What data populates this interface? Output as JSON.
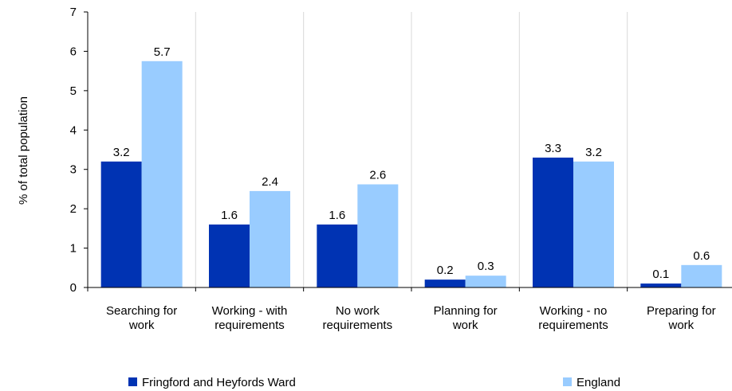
{
  "chart_data": {
    "type": "bar",
    "ylabel": "% of total population",
    "ylim": [
      0,
      7
    ],
    "yticks": [
      0,
      1,
      2,
      3,
      4,
      5,
      6,
      7
    ],
    "grid": "vertical-category-separators",
    "legend_position": "bottom",
    "categories": [
      [
        "Searching for",
        "work"
      ],
      [
        "Working - with",
        "requirements"
      ],
      [
        "No work",
        "requirements"
      ],
      [
        "Planning for",
        "work"
      ],
      [
        "Working - no",
        "requirements"
      ],
      [
        "Preparing for",
        "work"
      ]
    ],
    "series": [
      {
        "name": "Fringford and Heyfords Ward",
        "color": "#0033b3",
        "values": [
          3.2,
          1.6,
          1.6,
          0.2,
          3.3,
          0.1
        ],
        "labels": [
          "3.2",
          "1.6",
          "1.6",
          "0.2",
          "3.3",
          "0.1"
        ]
      },
      {
        "name": "England",
        "color": "#99ccff",
        "values": [
          5.75,
          2.45,
          2.62,
          0.3,
          3.2,
          0.57
        ],
        "labels": [
          "5.7",
          "2.4",
          "2.6",
          "0.3",
          "3.2",
          "0.6"
        ]
      }
    ]
  }
}
